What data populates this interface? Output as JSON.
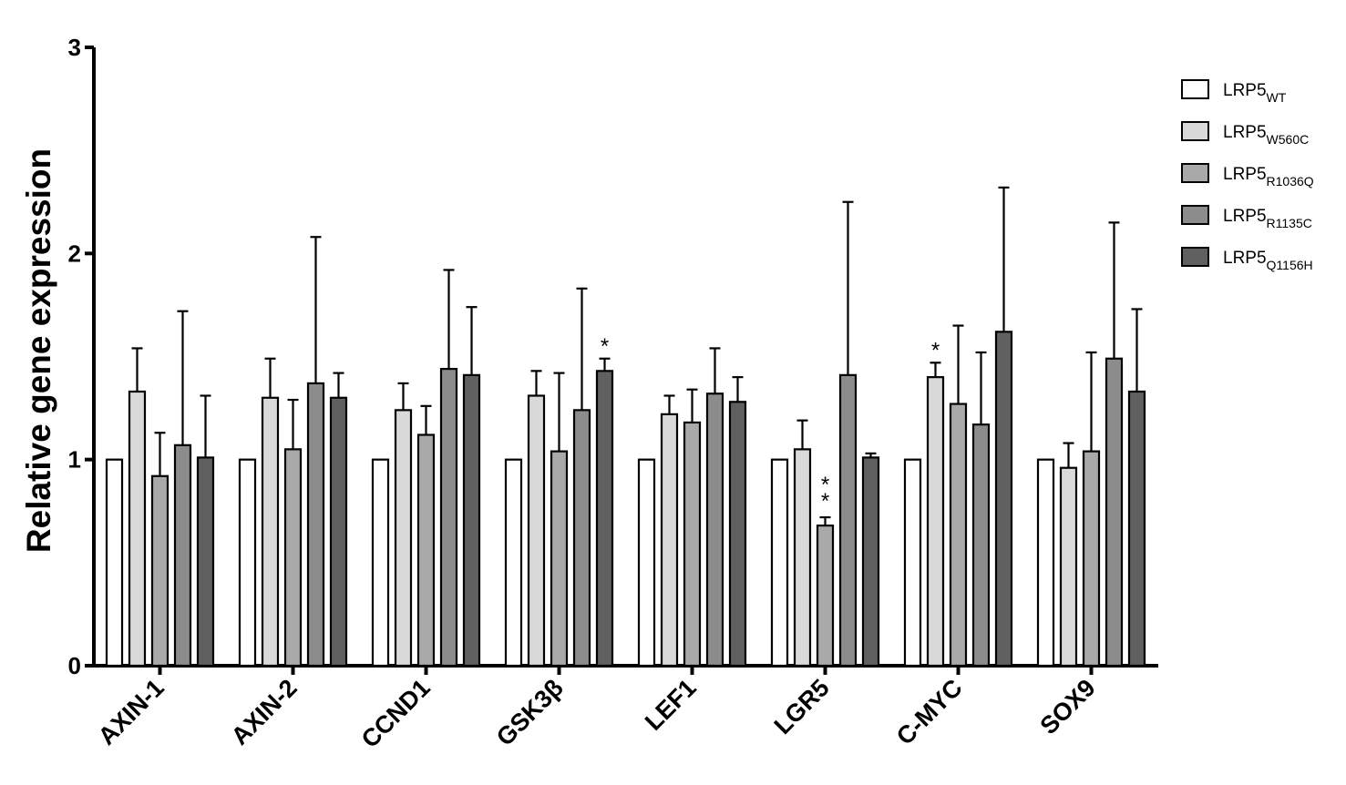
{
  "chart_data": {
    "type": "bar",
    "ylabel": "Relative gene expression",
    "xlabel": "",
    "ylim": [
      0,
      3
    ],
    "yticks": [
      "0",
      "1",
      "2",
      "3"
    ],
    "categories": [
      "AXIN-1",
      "AXIN-2",
      "CCND1",
      "GSK3β",
      "LEF1",
      "LGR5",
      "C-MYC",
      "SOX9"
    ],
    "series": [
      {
        "name": "LRP5",
        "sub": "WT",
        "color": "#ffffff",
        "values": [
          1.0,
          1.0,
          1.0,
          1.0,
          1.0,
          1.0,
          1.0,
          1.0
        ],
        "errors": [
          0,
          0,
          0,
          0,
          0,
          0,
          0,
          0
        ]
      },
      {
        "name": "LRP5",
        "sub": "W560C",
        "color": "#d9d9d9",
        "values": [
          1.33,
          1.3,
          1.24,
          1.31,
          1.22,
          1.05,
          1.4,
          0.96
        ],
        "errors": [
          0.21,
          0.19,
          0.13,
          0.12,
          0.09,
          0.14,
          0.07,
          0.12
        ]
      },
      {
        "name": "LRP5",
        "sub": "R1036Q",
        "color": "#a9a9a9",
        "values": [
          0.92,
          1.05,
          1.12,
          1.04,
          1.18,
          0.68,
          1.27,
          1.04
        ],
        "errors": [
          0.21,
          0.24,
          0.14,
          0.38,
          0.16,
          0.04,
          0.38,
          0.48
        ]
      },
      {
        "name": "LRP5",
        "sub": "R1135C",
        "color": "#8c8c8c",
        "values": [
          1.07,
          1.37,
          1.44,
          1.24,
          1.32,
          1.41,
          1.17,
          1.49
        ],
        "errors": [
          0.65,
          0.71,
          0.48,
          0.59,
          0.22,
          0.84,
          0.35,
          0.66
        ]
      },
      {
        "name": "LRP5",
        "sub": "Q1156H",
        "color": "#606060",
        "values": [
          1.01,
          1.3,
          1.41,
          1.43,
          1.28,
          1.01,
          1.62,
          1.33
        ],
        "errors": [
          0.3,
          0.12,
          0.33,
          0.06,
          0.12,
          0.02,
          0.7,
          0.4
        ]
      }
    ],
    "annotations": [
      {
        "category": "GSK3β",
        "series": 4,
        "text": "*"
      },
      {
        "category": "LGR5",
        "series": 2,
        "text": "**"
      },
      {
        "category": "C-MYC",
        "series": 1,
        "text": "*"
      }
    ],
    "legend": "top-right",
    "grid": false
  }
}
